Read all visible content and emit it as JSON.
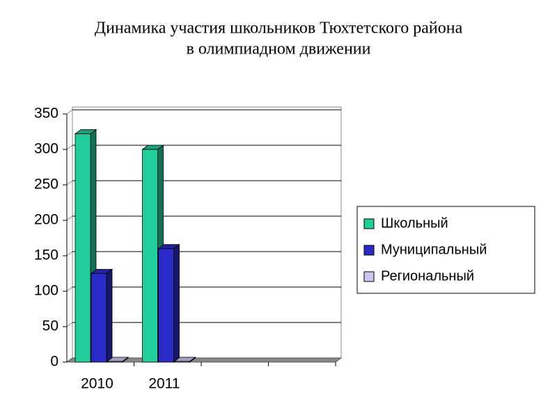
{
  "chart_data": {
    "type": "bar3d",
    "title": [
      "Динамика участия школьников Тюхтетского района",
      "в олимпиадном движении"
    ],
    "categories": [
      "2010",
      "2011",
      null,
      null
    ],
    "series": [
      {
        "name": "Школьный",
        "color": "#20cc98",
        "values": [
          322,
          300,
          null,
          null
        ]
      },
      {
        "name": "Муниципальный",
        "color": "#2a2ac8",
        "values": [
          125,
          160,
          null,
          null
        ]
      },
      {
        "name": "Региональный",
        "color": "#c8c8f0",
        "values": [
          1,
          1,
          null,
          null
        ]
      }
    ],
    "ylim": [
      0,
      350
    ],
    "yticks": [
      0,
      50,
      100,
      150,
      200,
      250,
      300,
      350
    ],
    "grid": true,
    "legend": "right"
  }
}
